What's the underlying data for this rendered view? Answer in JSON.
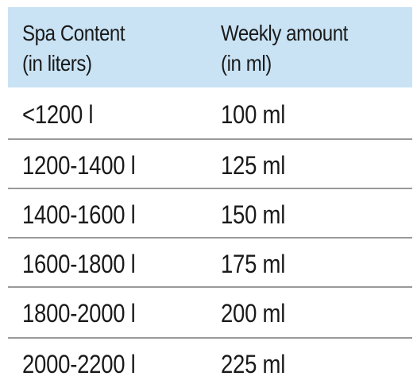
{
  "header": {
    "col1": [
      "Spa Content",
      "(in liters)"
    ],
    "col2": [
      "Weekly amount",
      "(in ml)"
    ]
  },
  "rows": [
    {
      "content": "<1200 l",
      "amount": "100 ml"
    },
    {
      "content": "1200-1400 l",
      "amount": "125 ml"
    },
    {
      "content": "1400-1600 l",
      "amount": "150 ml"
    },
    {
      "content": "1600-1800 l",
      "amount": "175 ml"
    },
    {
      "content": "1800-2000 l",
      "amount": "200 ml"
    },
    {
      "content": "2000-2200 l",
      "amount": "225 ml"
    }
  ],
  "colors": {
    "header_background": "#c9e3f5",
    "divider": "#9a9a9a",
    "text": "#1a1a1a"
  }
}
